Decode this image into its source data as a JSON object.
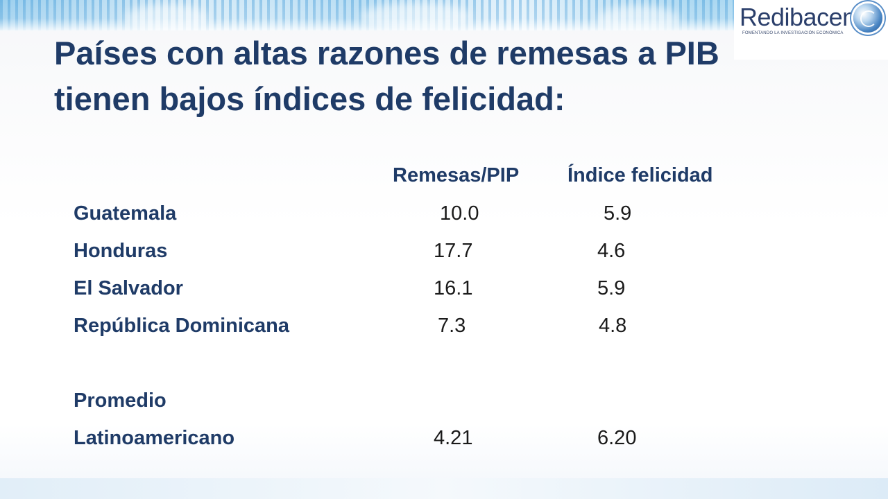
{
  "slide": {
    "title": "Países con altas razones de remesas a PIB tienen bajos índices de felicidad:"
  },
  "logo": {
    "name": "Redibacen",
    "tagline": "FOMENTANDO LA INVESTIGACIÓN ECONÓMICA",
    "icon": "globe-icon"
  },
  "table": {
    "headers": [
      "Remesas/PIP",
      "Índice felicidad"
    ],
    "rows": [
      {
        "country": "Guatemala",
        "remesas": "10.0",
        "felicidad": "5.9"
      },
      {
        "country": "Honduras",
        "remesas": "17.7",
        "felicidad": "4.6"
      },
      {
        "country": "El Salvador",
        "remesas": "16.1",
        "felicidad": "5.9"
      },
      {
        "country": "República Dominicana",
        "remesas": "7.3",
        "felicidad": "4.8"
      }
    ],
    "average": {
      "label_line1": "Promedio",
      "label_line2": "Latinoamericano",
      "remesas": "4.21",
      "felicidad": "6.20"
    }
  },
  "colors": {
    "title": "#1f3b67",
    "band": "#9ccfee",
    "logo_text": "#2b3f6b"
  }
}
